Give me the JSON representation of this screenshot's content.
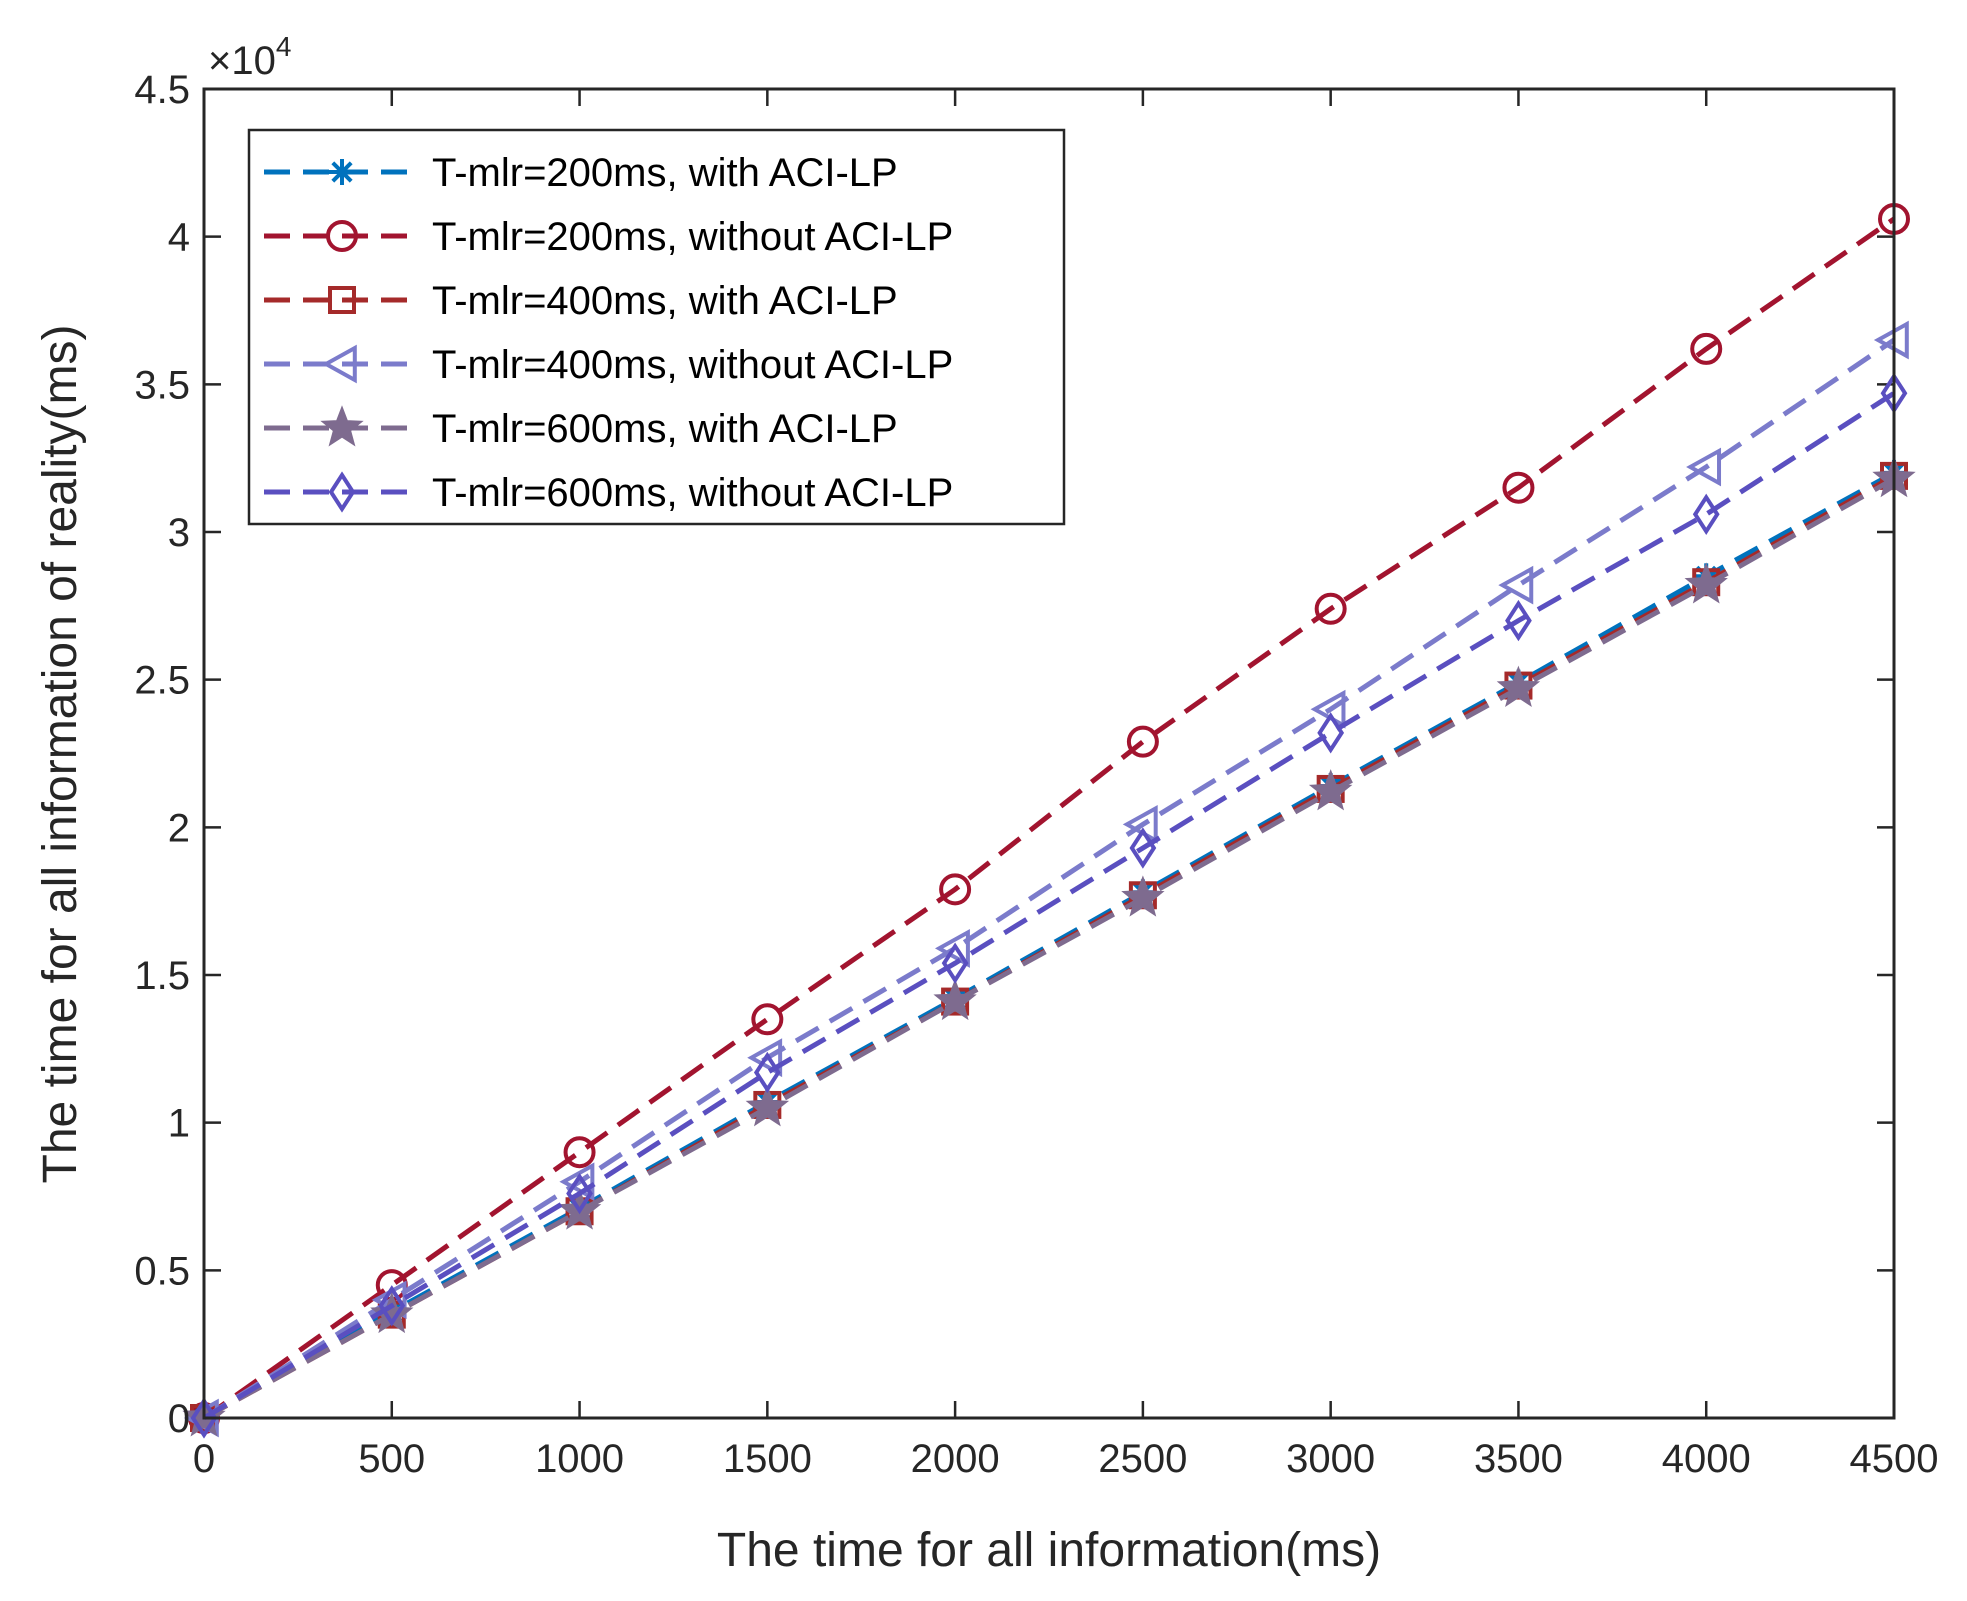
{
  "chart_data": {
    "type": "line",
    "title": "",
    "xlabel": "The time for all information(ms)",
    "ylabel": "The time for all information of reality(ms)",
    "y_exponent_label": "×10",
    "y_exponent_power": "4",
    "xlim": [
      0,
      4500
    ],
    "ylim": [
      0,
      4.5
    ],
    "x_ticks": [
      "0",
      "500",
      "1000",
      "1500",
      "2000",
      "2500",
      "3000",
      "3500",
      "4000",
      "4500"
    ],
    "y_ticks": [
      "0",
      "0.5",
      "1",
      "1.5",
      "2",
      "2.5",
      "3",
      "3.5",
      "4",
      "4.5"
    ],
    "legend_position": "top-left",
    "x": [
      0,
      500,
      1000,
      1500,
      2000,
      2500,
      3000,
      3500,
      4000,
      4500
    ],
    "series": [
      {
        "name": "T-mlr=200ms, with ACI-LP",
        "marker": "asterisk",
        "color": "#0072BD",
        "values": [
          0,
          0.36,
          0.71,
          1.07,
          1.42,
          1.78,
          2.14,
          2.49,
          2.85,
          3.2
        ]
      },
      {
        "name": "T-mlr=200ms, without ACI-LP",
        "marker": "circle",
        "color": "#A2142F",
        "values": [
          0,
          0.45,
          0.9,
          1.35,
          1.79,
          2.29,
          2.74,
          3.15,
          3.62,
          4.06
        ]
      },
      {
        "name": "T-mlr=400ms, with ACI-LP",
        "marker": "square",
        "color": "#A52A2A",
        "values": [
          0,
          0.35,
          0.7,
          1.06,
          1.41,
          1.77,
          2.13,
          2.48,
          2.83,
          3.19
        ]
      },
      {
        "name": "T-mlr=400ms, without ACI-LP",
        "marker": "triangle-left",
        "color": "#7B7BCB",
        "values": [
          0,
          0.4,
          0.8,
          1.22,
          1.59,
          2.01,
          2.4,
          2.82,
          3.22,
          3.65
        ]
      },
      {
        "name": "T-mlr=600ms, with ACI-LP",
        "marker": "pentagram",
        "color": "#7E6B8F",
        "values": [
          0,
          0.35,
          0.7,
          1.05,
          1.41,
          1.76,
          2.12,
          2.47,
          2.82,
          3.18
        ]
      },
      {
        "name": "T-mlr=600ms, without ACI-LP",
        "marker": "diamond",
        "color": "#5A4FC0",
        "values": [
          0,
          0.38,
          0.76,
          1.17,
          1.54,
          1.93,
          2.32,
          2.7,
          3.06,
          3.47
        ]
      }
    ]
  }
}
